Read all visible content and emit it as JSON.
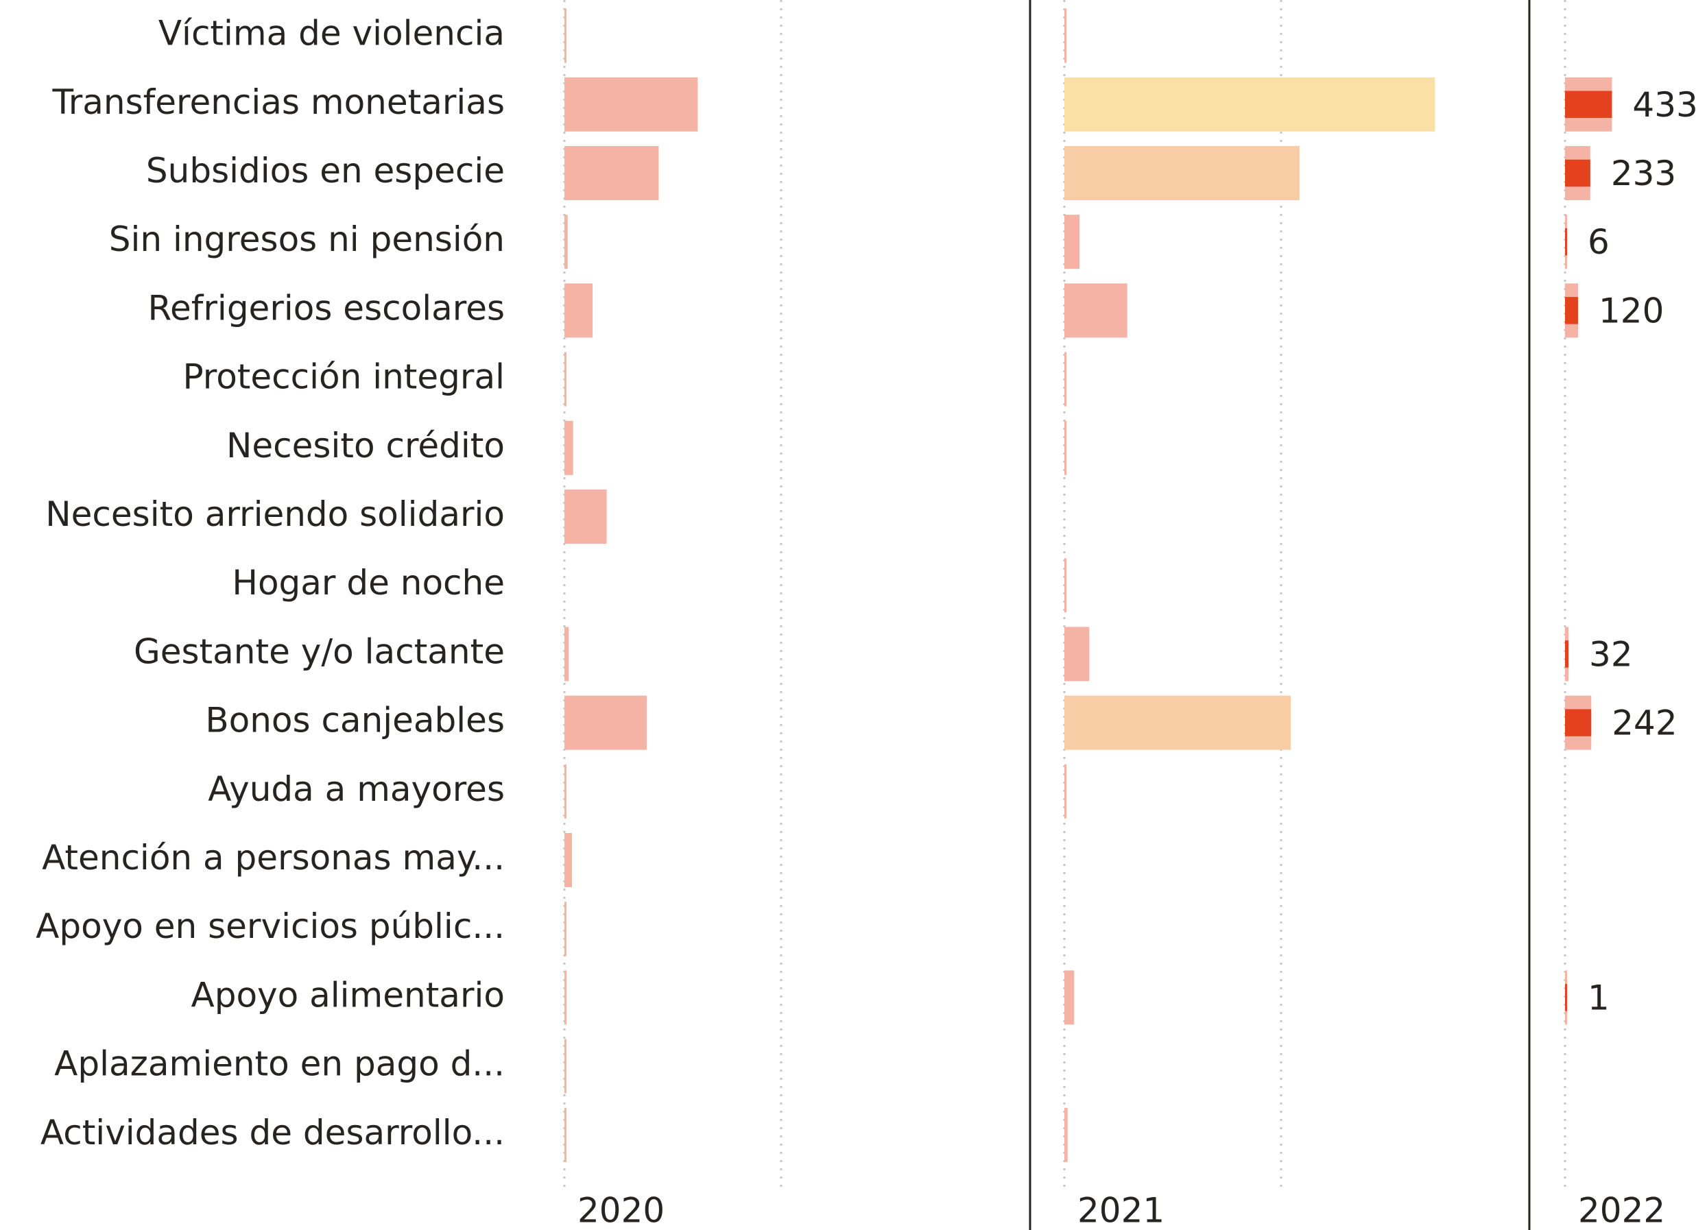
{
  "chart_data": {
    "type": "bar",
    "orientation": "horizontal",
    "grid": true,
    "categories": [
      "Víctima de violencia",
      "Transferencias monetarias",
      "Subsidios en especie",
      "Sin ingresos ni pensión",
      "Refrigerios escolares",
      "Protección integral",
      "Necesito crédito",
      "Necesito arriendo solidario",
      "Hogar de noche",
      "Gestante y/o lactante",
      "Bonos canjeables",
      "Ayuda a mayores",
      "Atención a personas may...",
      "Apoyo en servicios públic...",
      "Apoyo alimentario",
      "Aplazamiento en pago d...",
      "Actividades de desarrollo..."
    ],
    "xlim": [
      0,
      4300
    ],
    "xticks": [
      0,
      2000
    ],
    "series": [
      {
        "name": "2020",
        "color": "#f4b3a4",
        "values": [
          10,
          1230,
          870,
          30,
          260,
          10,
          80,
          390,
          null,
          40,
          760,
          10,
          70,
          10,
          20,
          10,
          10
        ]
      },
      {
        "name": "2021",
        "color": "#f4b3a4",
        "colors": [
          "#f4b3a4",
          "#fbe0a6",
          "#f8cda6",
          "#f4b3a4",
          "#f4b3a4",
          "#f4b3a4",
          "#f4b3a4",
          "#f4b3a4",
          "#f4b3a4",
          "#f4b3a4",
          "#f8cda6",
          "#f4b3a4",
          "#f4b3a4",
          "#f4b3a4",
          "#f4b3a4",
          "#f4b3a4",
          "#f4b3a4"
        ],
        "values": [
          20,
          3420,
          2170,
          140,
          580,
          20,
          20,
          null,
          20,
          230,
          2090,
          20,
          null,
          null,
          90,
          null,
          30
        ]
      },
      {
        "name": "2022",
        "color": "#e4411f",
        "back_color": "#f4b3a4",
        "data_labels": true,
        "values": [
          null,
          433,
          233,
          6,
          120,
          null,
          null,
          null,
          null,
          32,
          242,
          null,
          null,
          null,
          1,
          null,
          null
        ]
      }
    ]
  }
}
